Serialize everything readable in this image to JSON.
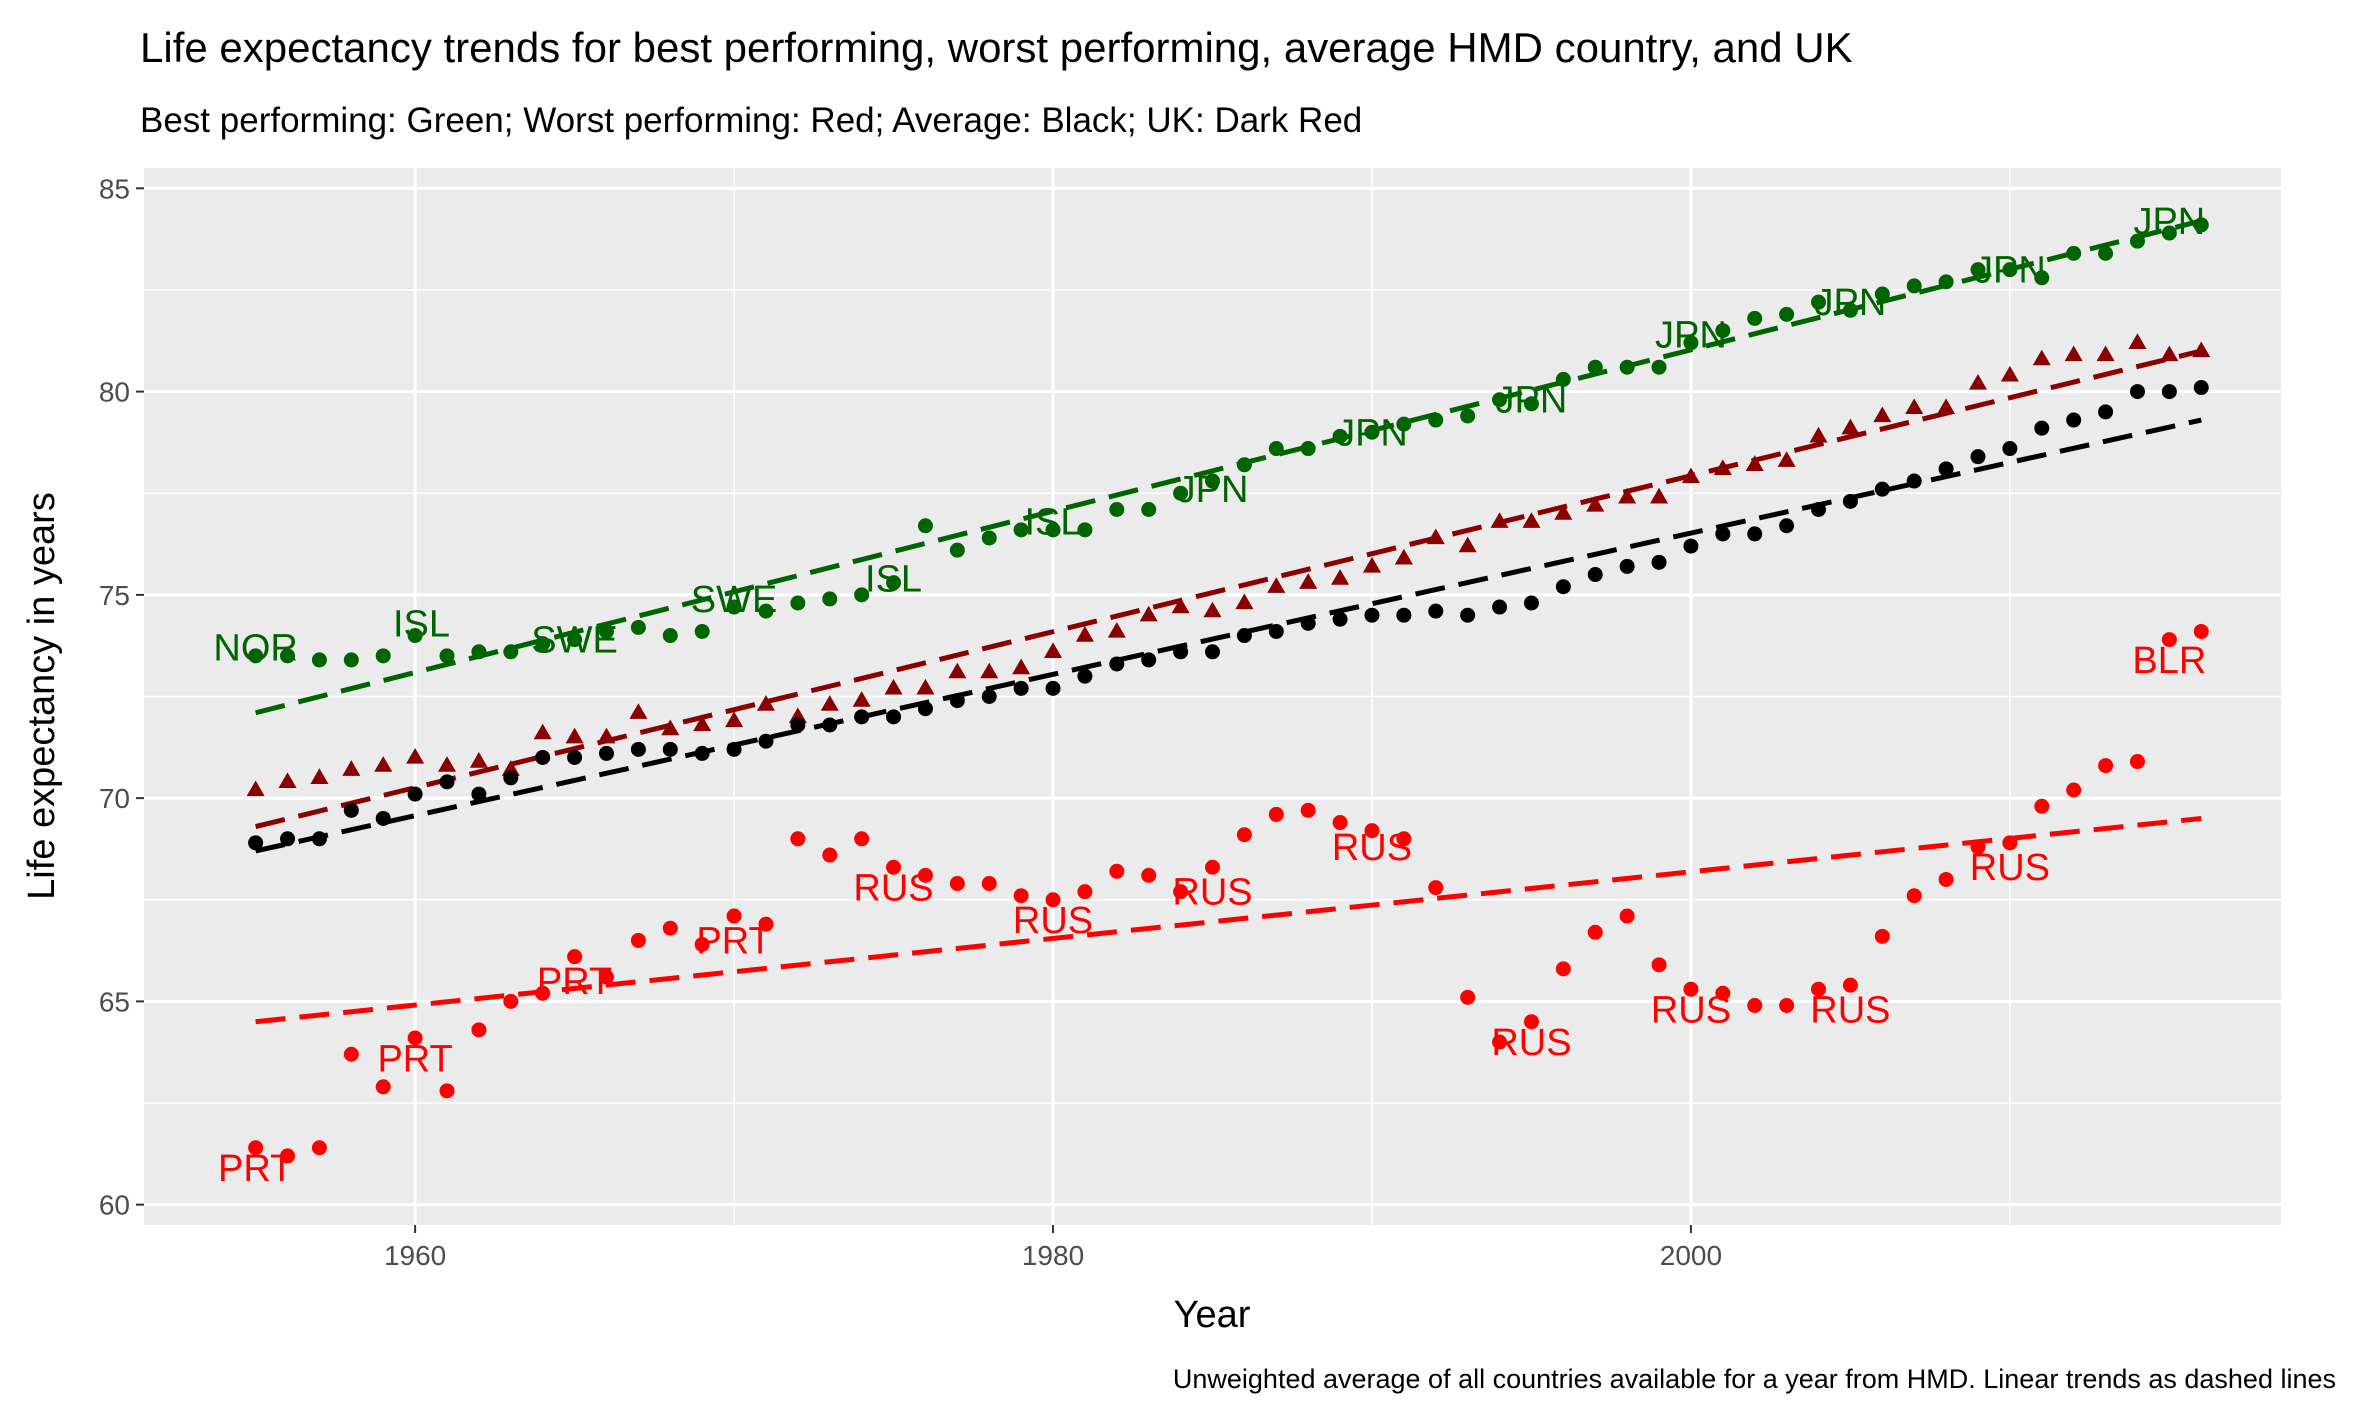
{
  "chart_data": {
    "type": "scatter",
    "title": "Life expectancy trends for best performing, worst performing, average HMD country, and UK",
    "subtitle": "Best performing: Green; Worst performing: Red; Average: Black; UK: Dark Red",
    "xlabel": "Year",
    "ylabel": "Life expectancy in years",
    "caption": "Unweighted average of all countries available for a year from HMD. Linear trends as dashed lines",
    "xlim": [
      1951.5,
      2018.5
    ],
    "ylim": [
      59.5,
      85.5
    ],
    "x_ticks": [
      1960,
      1980,
      2000
    ],
    "y_ticks": [
      60,
      65,
      70,
      75,
      80,
      85
    ],
    "grid": true,
    "colors": {
      "best": "#006400",
      "worst": "#ff0000",
      "average": "#000000",
      "uk": "#8b0000",
      "panel": "#ebebeb",
      "grid": "#ffffff"
    },
    "series": [
      {
        "key": "best",
        "color": "#006400",
        "marker": "circle",
        "x": [
          1955,
          1956,
          1957,
          1958,
          1959,
          1960,
          1961,
          1962,
          1963,
          1964,
          1965,
          1966,
          1967,
          1968,
          1969,
          1970,
          1971,
          1972,
          1973,
          1974,
          1975,
          1976,
          1977,
          1978,
          1979,
          1980,
          1981,
          1982,
          1983,
          1984,
          1985,
          1986,
          1987,
          1988,
          1989,
          1990,
          1991,
          1992,
          1993,
          1994,
          1995,
          1996,
          1997,
          1998,
          1999,
          2000,
          2001,
          2002,
          2003,
          2004,
          2005,
          2006,
          2007,
          2008,
          2009,
          2010,
          2011,
          2012,
          2013,
          2014,
          2015,
          2016
        ],
        "y": [
          73.5,
          73.5,
          73.4,
          73.4,
          73.5,
          74.0,
          73.5,
          73.6,
          73.6,
          73.8,
          73.9,
          74.1,
          74.2,
          74.0,
          74.1,
          74.7,
          74.6,
          74.8,
          74.9,
          75.0,
          75.3,
          76.7,
          76.1,
          76.4,
          76.6,
          76.6,
          76.6,
          77.1,
          77.1,
          77.5,
          77.8,
          78.2,
          78.6,
          78.6,
          78.9,
          79.0,
          79.2,
          79.3,
          79.4,
          79.8,
          79.7,
          80.3,
          80.6,
          80.6,
          80.6,
          81.2,
          81.5,
          81.8,
          81.9,
          82.2,
          82.0,
          82.4,
          82.6,
          82.7,
          83.0,
          83.0,
          82.8,
          83.4,
          83.4,
          83.7,
          83.9,
          84.1
        ]
      },
      {
        "key": "uk",
        "color": "#8b0000",
        "marker": "triangle",
        "x": [
          1955,
          1956,
          1957,
          1958,
          1959,
          1960,
          1961,
          1962,
          1963,
          1964,
          1965,
          1966,
          1967,
          1968,
          1969,
          1970,
          1971,
          1972,
          1973,
          1974,
          1975,
          1976,
          1977,
          1978,
          1979,
          1980,
          1981,
          1982,
          1983,
          1984,
          1985,
          1986,
          1987,
          1988,
          1989,
          1990,
          1991,
          1992,
          1993,
          1994,
          1995,
          1996,
          1997,
          1998,
          1999,
          2000,
          2001,
          2002,
          2003,
          2004,
          2005,
          2006,
          2007,
          2008,
          2009,
          2010,
          2011,
          2012,
          2013,
          2014,
          2015,
          2016
        ],
        "y": [
          70.2,
          70.4,
          70.5,
          70.7,
          70.8,
          71.0,
          70.8,
          70.9,
          70.7,
          71.6,
          71.5,
          71.5,
          72.1,
          71.7,
          71.8,
          71.9,
          72.3,
          72.0,
          72.3,
          72.4,
          72.7,
          72.7,
          73.1,
          73.1,
          73.2,
          73.6,
          74.0,
          74.1,
          74.5,
          74.7,
          74.6,
          74.8,
          75.2,
          75.3,
          75.4,
          75.7,
          75.9,
          76.4,
          76.2,
          76.8,
          76.8,
          77.0,
          77.2,
          77.4,
          77.4,
          77.9,
          78.1,
          78.2,
          78.3,
          78.9,
          79.1,
          79.4,
          79.6,
          79.6,
          80.2,
          80.4,
          80.8,
          80.9,
          80.9,
          81.2,
          80.9,
          81.0
        ]
      },
      {
        "key": "average",
        "color": "#000000",
        "marker": "circle",
        "x": [
          1955,
          1956,
          1957,
          1958,
          1959,
          1960,
          1961,
          1962,
          1963,
          1964,
          1965,
          1966,
          1967,
          1968,
          1969,
          1970,
          1971,
          1972,
          1973,
          1974,
          1975,
          1976,
          1977,
          1978,
          1979,
          1980,
          1981,
          1982,
          1983,
          1984,
          1985,
          1986,
          1987,
          1988,
          1989,
          1990,
          1991,
          1992,
          1993,
          1994,
          1995,
          1996,
          1997,
          1998,
          1999,
          2000,
          2001,
          2002,
          2003,
          2004,
          2005,
          2006,
          2007,
          2008,
          2009,
          2010,
          2011,
          2012,
          2013,
          2014,
          2015,
          2016
        ],
        "y": [
          68.9,
          69.0,
          69.0,
          69.7,
          69.5,
          70.1,
          70.4,
          70.1,
          70.5,
          71.0,
          71.0,
          71.1,
          71.2,
          71.2,
          71.1,
          71.2,
          71.4,
          71.8,
          71.8,
          72.0,
          72.0,
          72.2,
          72.4,
          72.5,
          72.7,
          72.7,
          73.0,
          73.3,
          73.4,
          73.6,
          73.6,
          74.0,
          74.1,
          74.3,
          74.4,
          74.5,
          74.5,
          74.6,
          74.5,
          74.7,
          74.8,
          75.2,
          75.5,
          75.7,
          75.8,
          76.2,
          76.5,
          76.5,
          76.7,
          77.1,
          77.3,
          77.6,
          77.8,
          78.1,
          78.4,
          78.6,
          79.1,
          79.3,
          79.5,
          80.0,
          80.0,
          80.1
        ]
      },
      {
        "key": "worst",
        "color": "#ff0000",
        "marker": "circle",
        "x": [
          1955,
          1956,
          1957,
          1958,
          1959,
          1960,
          1961,
          1962,
          1963,
          1964,
          1965,
          1966,
          1967,
          1968,
          1969,
          1970,
          1971,
          1972,
          1973,
          1974,
          1975,
          1976,
          1977,
          1978,
          1979,
          1980,
          1981,
          1982,
          1983,
          1984,
          1985,
          1986,
          1987,
          1988,
          1989,
          1990,
          1991,
          1992,
          1993,
          1994,
          1995,
          1996,
          1997,
          1998,
          1999,
          2000,
          2001,
          2002,
          2003,
          2004,
          2005,
          2006,
          2007,
          2008,
          2009,
          2010,
          2011,
          2012,
          2013,
          2014,
          2015,
          2016
        ],
        "y": [
          61.4,
          61.2,
          61.4,
          63.7,
          62.9,
          64.1,
          62.8,
          64.3,
          65.0,
          65.2,
          66.1,
          65.6,
          66.5,
          66.8,
          66.4,
          67.1,
          66.9,
          69.0,
          68.6,
          69.0,
          68.3,
          68.1,
          67.9,
          67.9,
          67.6,
          67.5,
          67.7,
          68.2,
          68.1,
          67.7,
          68.3,
          69.1,
          69.6,
          69.7,
          69.4,
          69.2,
          69.0,
          67.8,
          65.1,
          64.0,
          64.5,
          65.8,
          66.7,
          67.1,
          65.9,
          65.3,
          65.2,
          64.9,
          64.9,
          65.3,
          65.4,
          66.6,
          67.6,
          68.0,
          68.8,
          68.9,
          69.8,
          70.2,
          70.8,
          70.9,
          73.9,
          74.1
        ]
      }
    ],
    "trends": [
      {
        "key": "best",
        "color": "#006400",
        "x": [
          1955,
          2016
        ],
        "y": [
          72.1,
          84.2
        ]
      },
      {
        "key": "uk",
        "color": "#8b0000",
        "x": [
          1955,
          2016
        ],
        "y": [
          69.3,
          81.0
        ]
      },
      {
        "key": "average",
        "color": "#000000",
        "x": [
          1955,
          2016
        ],
        "y": [
          68.7,
          79.3
        ]
      },
      {
        "key": "worst",
        "color": "#ff0000",
        "x": [
          1955,
          2016
        ],
        "y": [
          64.5,
          69.5
        ]
      }
    ],
    "annotations": [
      {
        "text": "NOR",
        "x": 1955,
        "y": 73.7,
        "color": "#006400"
      },
      {
        "text": "ISL",
        "x": 1960.2,
        "y": 74.3,
        "color": "#006400"
      },
      {
        "text": "SWE",
        "x": 1965,
        "y": 73.9,
        "color": "#006400"
      },
      {
        "text": "SWE",
        "x": 1970,
        "y": 74.9,
        "color": "#006400"
      },
      {
        "text": "ISL",
        "x": 1975,
        "y": 75.4,
        "color": "#006400"
      },
      {
        "text": "ISL",
        "x": 1980,
        "y": 76.8,
        "color": "#006400"
      },
      {
        "text": "JPN",
        "x": 1985,
        "y": 77.6,
        "color": "#006400"
      },
      {
        "text": "JPN",
        "x": 1990,
        "y": 79.0,
        "color": "#006400"
      },
      {
        "text": "JPN",
        "x": 1995,
        "y": 79.8,
        "color": "#006400"
      },
      {
        "text": "JPN",
        "x": 2000,
        "y": 81.4,
        "color": "#006400"
      },
      {
        "text": "JPN",
        "x": 2005,
        "y": 82.2,
        "color": "#006400"
      },
      {
        "text": "JPN",
        "x": 2010,
        "y": 83.0,
        "color": "#006400"
      },
      {
        "text": "JPN",
        "x": 2015,
        "y": 84.2,
        "color": "#006400"
      },
      {
        "text": "PRT",
        "x": 1955,
        "y": 60.9,
        "color": "#ff0000"
      },
      {
        "text": "PRT",
        "x": 1960,
        "y": 63.6,
        "color": "#ff0000"
      },
      {
        "text": "PRT",
        "x": 1965,
        "y": 65.5,
        "color": "#ff0000"
      },
      {
        "text": "PRT",
        "x": 1970,
        "y": 66.5,
        "color": "#ff0000"
      },
      {
        "text": "RUS",
        "x": 1975,
        "y": 67.8,
        "color": "#ff0000"
      },
      {
        "text": "RUS",
        "x": 1980,
        "y": 67.0,
        "color": "#ff0000"
      },
      {
        "text": "RUS",
        "x": 1985,
        "y": 67.7,
        "color": "#ff0000"
      },
      {
        "text": "RUS",
        "x": 1990,
        "y": 68.8,
        "color": "#ff0000"
      },
      {
        "text": "RUS",
        "x": 1995,
        "y": 64.0,
        "color": "#ff0000"
      },
      {
        "text": "RUS",
        "x": 2000,
        "y": 64.8,
        "color": "#ff0000"
      },
      {
        "text": "RUS",
        "x": 2005,
        "y": 64.8,
        "color": "#ff0000"
      },
      {
        "text": "RUS",
        "x": 2010,
        "y": 68.3,
        "color": "#ff0000"
      },
      {
        "text": "BLR",
        "x": 2015,
        "y": 73.4,
        "color": "#ff0000"
      }
    ]
  }
}
